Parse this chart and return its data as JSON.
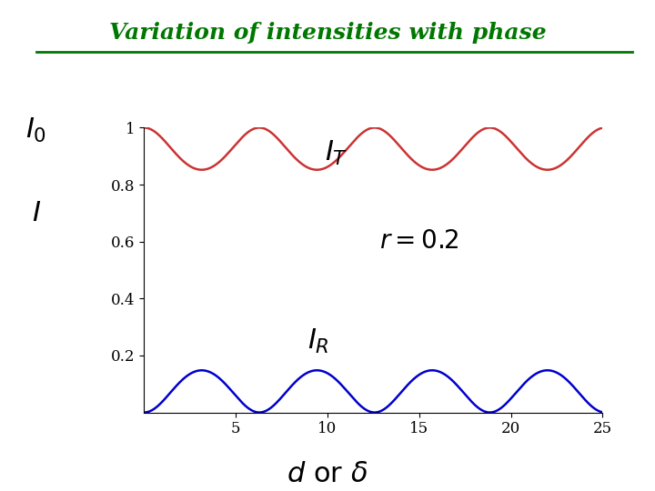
{
  "title": "Variation of intensities with phase",
  "title_color": "#007700",
  "r": 0.2,
  "x_min": 0,
  "x_max": 25,
  "y_min": 0,
  "y_max": 1.0,
  "x_ticks": [
    5,
    10,
    15,
    20,
    25
  ],
  "y_tick_labels": [
    "0.2",
    "0.4",
    "0.6",
    "0.8",
    "1"
  ],
  "y_tick_vals": [
    0.2,
    0.4,
    0.6,
    0.8,
    1.0
  ],
  "IT_color": "#cc3333",
  "IR_color": "#0000cc",
  "bg_color": "#ffffff",
  "linewidth": 1.8
}
